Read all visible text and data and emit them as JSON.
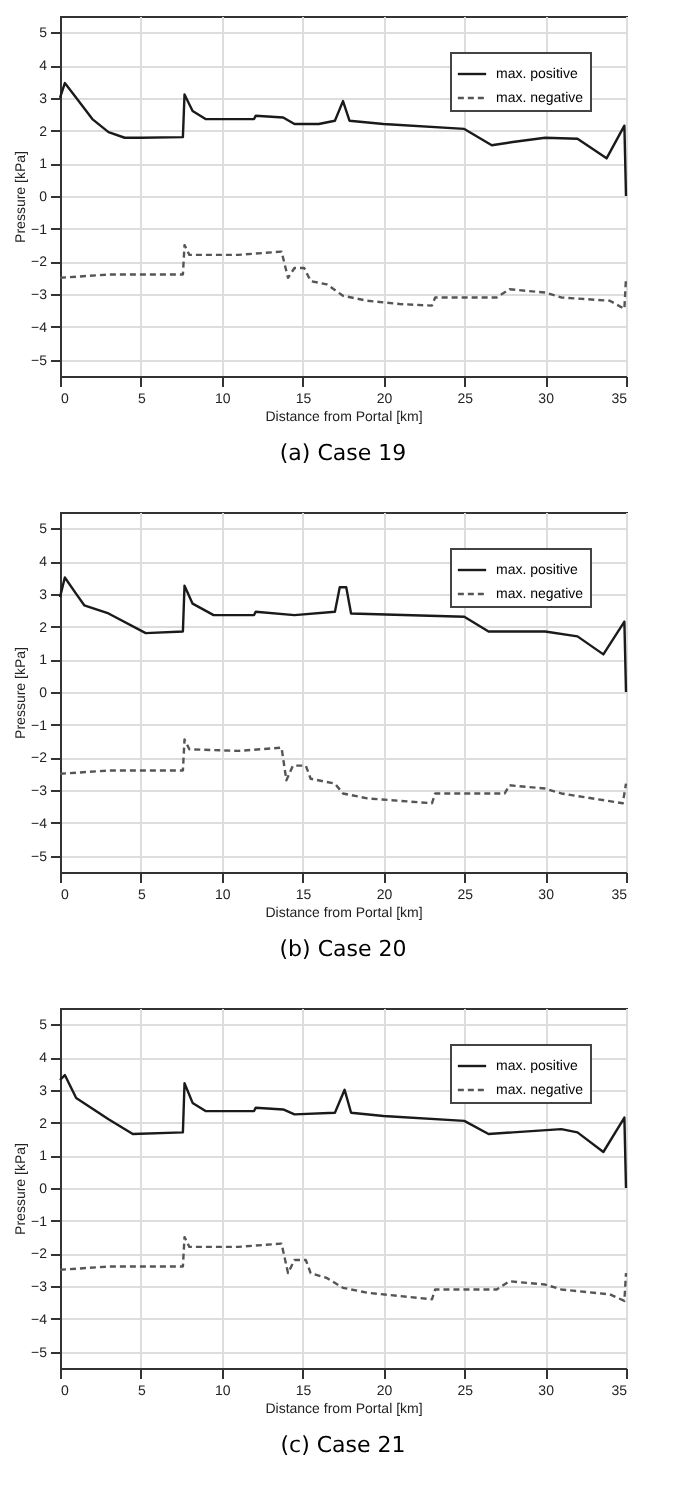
{
  "chart_data": [
    {
      "type": "line",
      "title": "(a)  Case 19",
      "xlabel": "Distance from Portal [km]",
      "ylabel": "Pressure [kPa]",
      "xlim": [
        0,
        35
      ],
      "ylim": [
        -5.5,
        5.5
      ],
      "xticks": [
        0,
        5,
        10,
        15,
        20,
        25,
        30,
        35
      ],
      "yticks": [
        -5,
        -4,
        -3,
        -2,
        -1,
        0,
        1,
        2,
        3,
        4,
        5
      ],
      "grid": true,
      "legend": "top right",
      "series": [
        {
          "name": "max. positive",
          "color": "#1a1a1a",
          "line_style": "solid",
          "x": [
            0,
            0.3,
            1,
            2,
            3,
            4,
            5,
            7.6,
            7.7,
            8.2,
            9,
            12,
            12.1,
            13.8,
            14.5,
            16,
            17,
            17.5,
            17.9,
            20,
            25,
            26.7,
            28,
            30,
            32,
            33.8,
            34.9,
            35
          ],
          "values": [
            3.0,
            3.45,
            3.0,
            2.35,
            1.95,
            1.78,
            1.78,
            1.8,
            3.1,
            2.6,
            2.35,
            2.35,
            2.45,
            2.4,
            2.2,
            2.2,
            2.3,
            2.9,
            2.3,
            2.2,
            2.05,
            1.55,
            1.65,
            1.78,
            1.75,
            1.15,
            2.15,
            0
          ]
        },
        {
          "name": "max. negative",
          "color": "#555555",
          "line_style": "dashed",
          "x": [
            0,
            3,
            7.6,
            7.7,
            8,
            11,
            13.7,
            14.1,
            14.5,
            15.1,
            15.5,
            16.5,
            17.5,
            19,
            21,
            23,
            23.2,
            27,
            27.8,
            30,
            31,
            34,
            34.9,
            35
          ],
          "values": [
            -2.5,
            -2.4,
            -2.4,
            -1.5,
            -1.8,
            -1.8,
            -1.7,
            -2.5,
            -2.2,
            -2.2,
            -2.6,
            -2.7,
            -3.05,
            -3.2,
            -3.3,
            -3.35,
            -3.1,
            -3.1,
            -2.85,
            -2.95,
            -3.1,
            -3.2,
            -3.45,
            -2.5
          ]
        }
      ]
    },
    {
      "type": "line",
      "title": "(b)  Case 20",
      "xlabel": "Distance from Portal [km]",
      "ylabel": "Pressure [kPa]",
      "xlim": [
        0,
        35
      ],
      "ylim": [
        -5.5,
        5.5
      ],
      "xticks": [
        0,
        5,
        10,
        15,
        20,
        25,
        30,
        35
      ],
      "yticks": [
        -5,
        -4,
        -3,
        -2,
        -1,
        0,
        1,
        2,
        3,
        4,
        5
      ],
      "grid": true,
      "legend": "top right",
      "series": [
        {
          "name": "max. positive",
          "color": "#1a1a1a",
          "line_style": "solid",
          "x": [
            0,
            0.3,
            1,
            1.5,
            3,
            5.3,
            7.6,
            7.7,
            8.2,
            9.5,
            12,
            12.1,
            14.5,
            17,
            17.3,
            17.7,
            18,
            25,
            26.5,
            30,
            32,
            33.6,
            34.9,
            35
          ],
          "values": [
            2.9,
            3.5,
            3.0,
            2.65,
            2.4,
            1.8,
            1.85,
            3.25,
            2.7,
            2.35,
            2.35,
            2.45,
            2.35,
            2.45,
            3.2,
            3.2,
            2.4,
            2.3,
            1.85,
            1.85,
            1.7,
            1.15,
            2.15,
            0
          ]
        },
        {
          "name": "max. negative",
          "color": "#555555",
          "line_style": "dashed",
          "x": [
            0,
            3,
            7.6,
            7.7,
            8,
            11,
            13.7,
            14,
            14.4,
            15.2,
            15.5,
            17,
            17.5,
            19,
            23,
            23.2,
            27.5,
            27.8,
            30,
            31,
            34.8,
            35
          ],
          "values": [
            -2.5,
            -2.4,
            -2.4,
            -1.45,
            -1.75,
            -1.8,
            -1.7,
            -2.7,
            -2.25,
            -2.25,
            -2.65,
            -2.8,
            -3.1,
            -3.25,
            -3.4,
            -3.1,
            -3.1,
            -2.85,
            -2.95,
            -3.1,
            -3.4,
            -2.8
          ]
        }
      ]
    },
    {
      "type": "line",
      "title": "(c)  Case 21",
      "xlabel": "Distance from Portal [km]",
      "ylabel": "Pressure [kPa]",
      "xlim": [
        0,
        35
      ],
      "ylim": [
        -5.5,
        5.5
      ],
      "xticks": [
        0,
        5,
        10,
        15,
        20,
        25,
        30,
        35
      ],
      "yticks": [
        -5,
        -4,
        -3,
        -2,
        -1,
        0,
        1,
        2,
        3,
        4,
        5
      ],
      "grid": true,
      "legend": "top right",
      "series": [
        {
          "name": "max. positive",
          "color": "#1a1a1a",
          "line_style": "solid",
          "x": [
            0,
            0.3,
            1,
            3,
            4.5,
            7.6,
            7.7,
            8.2,
            9,
            12,
            12.1,
            13.8,
            14.5,
            17,
            17.6,
            18,
            20,
            25,
            26.5,
            28,
            31,
            32,
            33.6,
            34.9,
            35
          ],
          "values": [
            3.3,
            3.45,
            2.75,
            2.1,
            1.65,
            1.7,
            3.2,
            2.6,
            2.35,
            2.35,
            2.45,
            2.4,
            2.25,
            2.3,
            3.0,
            2.3,
            2.2,
            2.05,
            1.65,
            1.7,
            1.8,
            1.7,
            1.1,
            2.15,
            0
          ]
        },
        {
          "name": "max. negative",
          "color": "#555555",
          "line_style": "dashed",
          "x": [
            0,
            3,
            7.6,
            7.7,
            8,
            11,
            13.7,
            14.1,
            14.5,
            15.2,
            15.5,
            16.5,
            17.5,
            19,
            21,
            23,
            23.2,
            27,
            27.8,
            30,
            31,
            34,
            34.9,
            35
          ],
          "values": [
            -2.5,
            -2.4,
            -2.4,
            -1.5,
            -1.8,
            -1.8,
            -1.7,
            -2.6,
            -2.2,
            -2.2,
            -2.6,
            -2.75,
            -3.05,
            -3.2,
            -3.3,
            -3.4,
            -3.1,
            -3.1,
            -2.85,
            -2.95,
            -3.1,
            -3.25,
            -3.45,
            -2.6
          ]
        }
      ]
    }
  ]
}
